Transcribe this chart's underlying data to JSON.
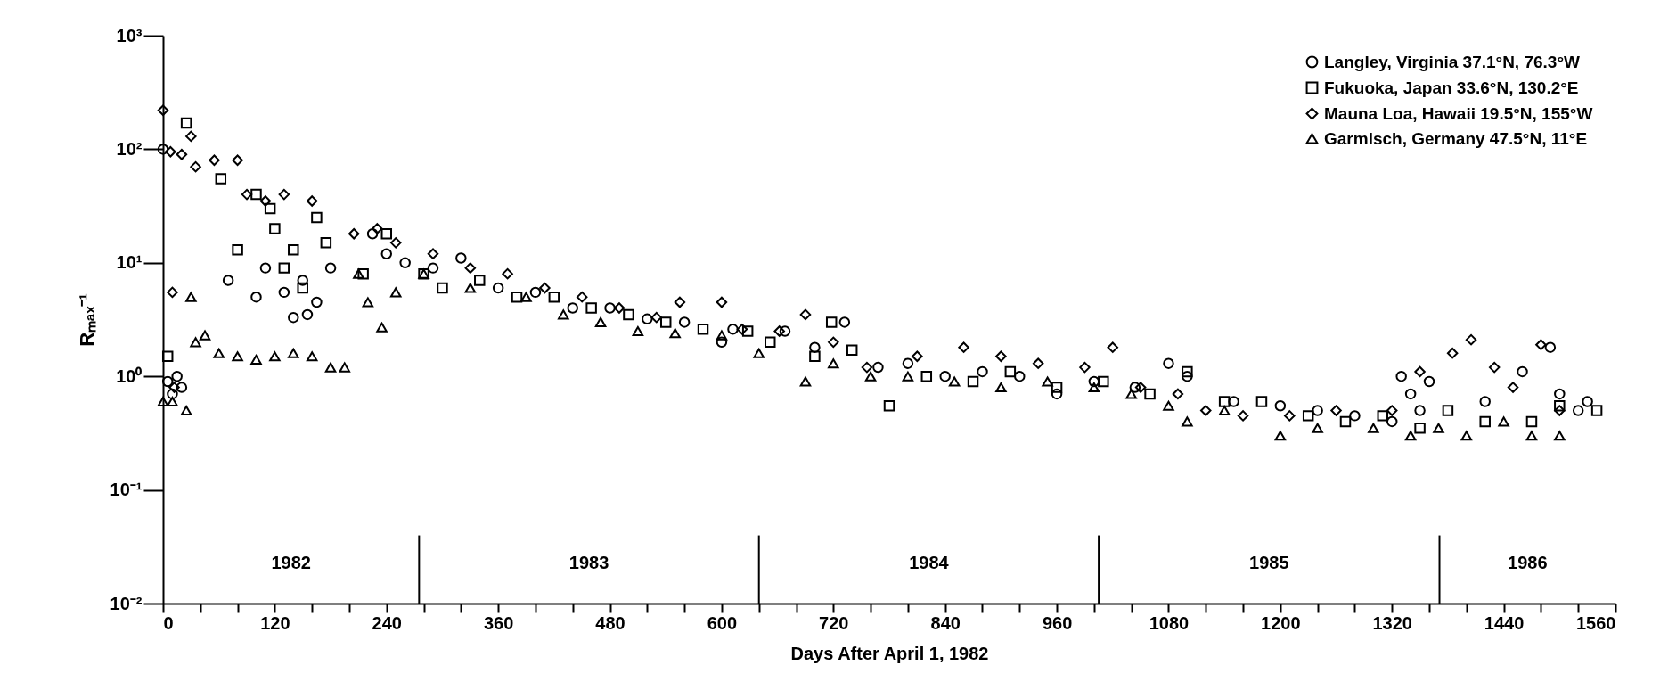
{
  "chart_data": {
    "type": "scatter",
    "xlabel": "Days After April 1, 1982",
    "ylabel": "Rₘₐₓ⁻¹",
    "log": "y",
    "grid": false,
    "legend": "top right",
    "xlim": [
      0,
      1560
    ],
    "ylim": [
      0.01,
      1000
    ],
    "xticks": [
      0,
      {
        "value": 40,
        "label": null
      },
      {
        "value": 80,
        "label": null
      },
      120,
      {
        "value": 160,
        "label": null
      },
      {
        "value": 200,
        "label": null
      },
      240,
      {
        "value": 280,
        "label": null
      },
      {
        "value": 320,
        "label": null
      },
      360,
      {
        "value": 400,
        "label": null
      },
      {
        "value": 440,
        "label": null
      },
      480,
      {
        "value": 520,
        "label": null
      },
      {
        "value": 560,
        "label": null
      },
      600,
      {
        "value": 640,
        "label": null
      },
      {
        "value": 680,
        "label": null
      },
      720,
      {
        "value": 760,
        "label": null
      },
      {
        "value": 800,
        "label": null
      },
      840,
      {
        "value": 880,
        "label": null
      },
      {
        "value": 920,
        "label": null
      },
      960,
      {
        "value": 1000,
        "label": null
      },
      {
        "value": 1040,
        "label": null
      },
      1080,
      {
        "value": 1120,
        "label": null
      },
      {
        "value": 1160,
        "label": null
      },
      1200,
      {
        "value": 1240,
        "label": null
      },
      {
        "value": 1280,
        "label": null
      },
      1320,
      {
        "value": 1360,
        "label": null
      },
      {
        "value": 1400,
        "label": null
      },
      1440,
      {
        "value": 1480,
        "label": null
      },
      {
        "value": 1520,
        "label": null
      },
      1560
    ],
    "yticks": [
      {
        "value": 0.01,
        "label": "10⁻²"
      },
      {
        "value": 0.1,
        "label": "10⁻¹"
      },
      {
        "value": 1,
        "label": "10⁰"
      },
      {
        "value": 10,
        "label": "10¹"
      },
      {
        "value": 100,
        "label": "10²"
      },
      {
        "value": 1000,
        "label": "10³"
      }
    ],
    "ref_lines": [
      {
        "axis": "x",
        "value": 275
      },
      {
        "axis": "x",
        "value": 640
      },
      {
        "axis": "x",
        "value": 1005
      },
      {
        "axis": "x",
        "value": 1371
      }
    ],
    "annotations": [
      "1982",
      "1983",
      "1984",
      "1985",
      "1986"
    ],
    "series": [
      {
        "name": "Langley, Virginia  37.1°N, 76.3°W",
        "color": "#000000",
        "marker": "circle",
        "x": [
          0,
          5,
          10,
          15,
          20,
          70,
          100,
          110,
          130,
          140,
          150,
          155,
          165,
          180,
          225,
          240,
          260,
          290,
          320,
          360,
          400,
          440,
          480,
          520,
          560,
          600,
          612,
          668,
          700,
          732,
          768,
          800,
          840,
          880,
          920,
          960,
          1000,
          1044,
          1080,
          1100,
          1150,
          1200,
          1240,
          1280,
          1320,
          1330,
          1340,
          1350,
          1360,
          1420,
          1460,
          1490,
          1500,
          1520,
          1530
        ],
        "values": [
          100,
          0.9,
          0.7,
          1,
          0.8,
          7,
          5,
          9,
          5.5,
          3.3,
          7,
          3.5,
          4.5,
          9,
          18,
          12,
          10,
          9,
          11,
          6,
          5.5,
          4,
          4,
          3.2,
          3,
          2,
          2.6,
          2.5,
          1.8,
          3,
          1.2,
          1.3,
          1,
          1.1,
          1,
          0.7,
          0.9,
          0.8,
          1.3,
          1,
          0.6,
          0.55,
          0.5,
          0.45,
          0.4,
          1,
          0.7,
          0.5,
          0.9,
          0.6,
          1.1,
          1.8,
          0.7,
          0.5,
          0.6
        ]
      },
      {
        "name": "Fukuoka, Japan  33.6°N, 130.2°E",
        "color": "#000000",
        "marker": "square",
        "x": [
          5,
          25,
          62,
          80,
          100,
          115,
          120,
          130,
          140,
          150,
          165,
          175,
          215,
          240,
          280,
          300,
          340,
          380,
          420,
          460,
          500,
          540,
          580,
          628,
          652,
          700,
          718,
          740,
          780,
          820,
          870,
          910,
          960,
          1010,
          1060,
          1100,
          1140,
          1180,
          1230,
          1270,
          1310,
          1350,
          1380,
          1420,
          1470,
          1500,
          1540
        ],
        "values": [
          1.5,
          170,
          55,
          13,
          40,
          30,
          20,
          9,
          13,
          6,
          25,
          15,
          8,
          18,
          8,
          6,
          7,
          5,
          5,
          4,
          3.5,
          3,
          2.6,
          2.5,
          2,
          1.5,
          3,
          1.7,
          0.55,
          1,
          0.9,
          1.1,
          0.8,
          0.9,
          0.7,
          1.1,
          0.6,
          0.6,
          0.45,
          0.4,
          0.45,
          0.35,
          0.5,
          0.4,
          0.4,
          0.55,
          0.5
        ]
      },
      {
        "name": "Mauna Loa, Hawaii  19.5°N, 155°W",
        "color": "#000000",
        "marker": "diamond",
        "x": [
          0,
          8,
          10,
          12,
          20,
          30,
          35,
          55,
          80,
          90,
          110,
          130,
          160,
          205,
          230,
          250,
          290,
          330,
          370,
          410,
          450,
          490,
          530,
          555,
          600,
          622,
          662,
          690,
          720,
          756,
          810,
          860,
          900,
          940,
          990,
          1020,
          1050,
          1090,
          1120,
          1160,
          1210,
          1260,
          1320,
          1350,
          1385,
          1405,
          1430,
          1450,
          1480,
          1500
        ],
        "values": [
          220,
          95,
          5.5,
          0.8,
          90,
          130,
          70,
          80,
          80,
          40,
          35,
          40,
          35,
          18,
          20,
          15,
          12,
          9,
          8,
          6,
          5,
          4,
          3.3,
          4.5,
          4.5,
          2.6,
          2.5,
          3.5,
          2,
          1.2,
          1.5,
          1.8,
          1.5,
          1.3,
          1.2,
          1.8,
          0.8,
          0.7,
          0.5,
          0.45,
          0.45,
          0.5,
          0.5,
          1.1,
          1.6,
          2.1,
          1.2,
          0.8,
          1.9,
          0.5
        ]
      },
      {
        "name": "Garmisch, Germany  47.5°N, 11°E",
        "color": "#000000",
        "marker": "triangle",
        "x": [
          0,
          10,
          25,
          30,
          35,
          45,
          60,
          80,
          100,
          120,
          140,
          160,
          180,
          195,
          210,
          220,
          235,
          250,
          280,
          330,
          390,
          430,
          470,
          510,
          550,
          600,
          640,
          690,
          720,
          760,
          800,
          850,
          900,
          950,
          1000,
          1040,
          1080,
          1100,
          1140,
          1200,
          1240,
          1300,
          1340,
          1370,
          1400,
          1440,
          1470,
          1500
        ],
        "values": [
          0.6,
          0.6,
          0.5,
          5,
          2,
          2.3,
          1.6,
          1.5,
          1.4,
          1.5,
          1.6,
          1.5,
          1.2,
          1.2,
          8,
          4.5,
          2.7,
          5.5,
          8,
          6,
          5,
          3.5,
          3,
          2.5,
          2.4,
          2.3,
          1.6,
          0.9,
          1.3,
          1,
          1,
          0.9,
          0.8,
          0.9,
          0.8,
          0.7,
          0.55,
          0.4,
          0.5,
          0.3,
          0.35,
          0.35,
          0.3,
          0.35,
          0.3,
          0.4,
          0.3,
          0.3
        ]
      }
    ]
  }
}
